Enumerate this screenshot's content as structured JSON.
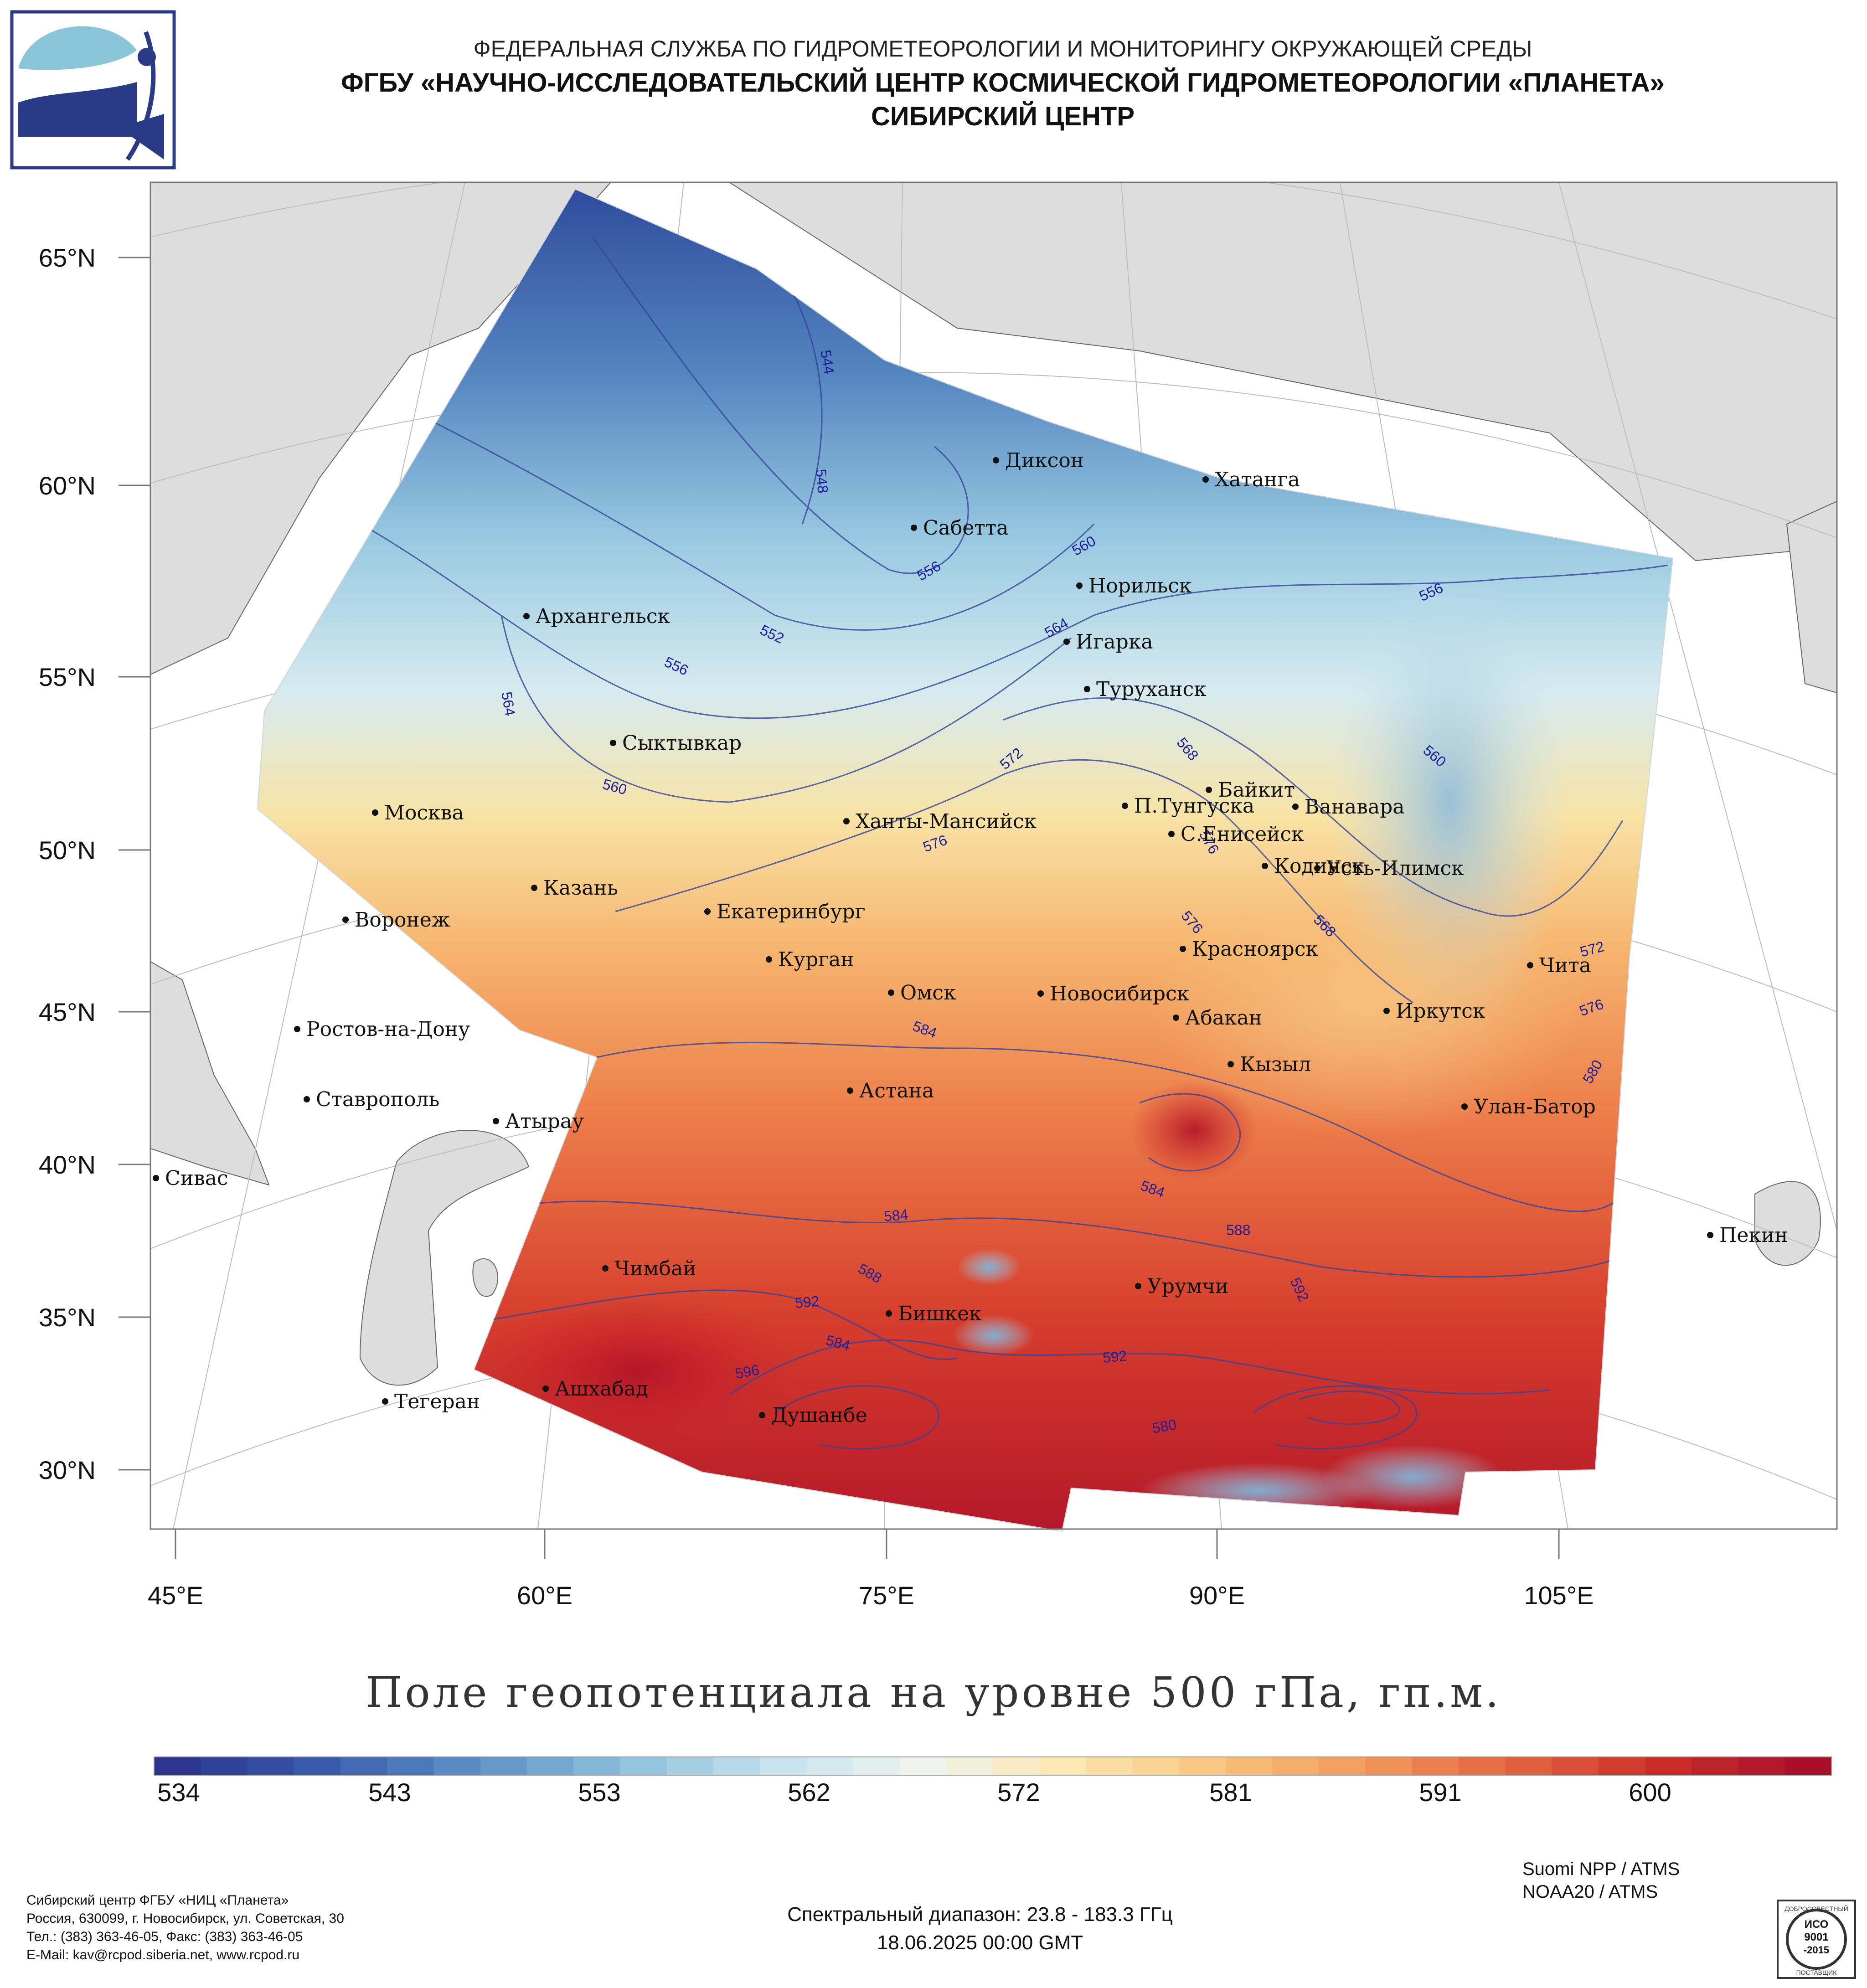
{
  "header": {
    "agency": "ФЕДЕРАЛЬНАЯ СЛУЖБА ПО ГИДРОМЕТЕОРОЛОГИИ И МОНИТОРИНГУ ОКРУЖАЮЩЕЙ СРЕДЫ",
    "organization": "ФГБУ «НАУЧНО-ИССЛЕДОВАТЕЛЬСКИЙ ЦЕНТР КОСМИЧЕСКОЙ ГИДРОМЕТЕОРОЛОГИИ «ПЛАНЕТА»",
    "center": "СИБИРСКИЙ ЦЕНТР"
  },
  "map": {
    "lat_labels": [
      "65°N",
      "60°N",
      "55°N",
      "50°N",
      "45°N",
      "40°N",
      "35°N",
      "30°N"
    ],
    "lon_labels": [
      "45°E",
      "60°E",
      "75°E",
      "90°E",
      "105°E"
    ],
    "cities": [
      "Диксон",
      "Хатанга",
      "Сабетта",
      "Норильск",
      "Архангельск",
      "Игарка",
      "Туруханск",
      "Сыктывкар",
      "Байкит",
      "П.Тунгуска",
      "Ванавара",
      "Москва",
      "Ханты-Мансийск",
      "С.Енисейск",
      "Кодинск",
      "Усть-Илимск",
      "Казань",
      "Екатеринбург",
      "Воронеж",
      "Красноярск",
      "Курган",
      "Чита",
      "Омск",
      "Новосибирск",
      "Иркутск",
      "Ростов-на-Дону",
      "Абакан",
      "Кызыл",
      "Астана",
      "Ставрополь",
      "Улан-Батор",
      "Атырау",
      "Сивас",
      "Пекин",
      "Чимбай",
      "Урумчи",
      "Бишкек",
      "Ашхабад",
      "Тегеран",
      "Душанбе"
    ],
    "contour_labels": [
      "544",
      "548",
      "552",
      "556",
      "556",
      "556",
      "560",
      "560",
      "560",
      "564",
      "564",
      "568",
      "568",
      "572",
      "572",
      "576",
      "576",
      "576",
      "576",
      "580",
      "580",
      "584",
      "584",
      "584",
      "584",
      "588",
      "588",
      "592",
      "592",
      "592",
      "596"
    ]
  },
  "title": "Поле геопотенциала на уровне 500 гПа, гп.м.",
  "colorbar": {
    "ticks": [
      "534",
      "543",
      "553",
      "562",
      "572",
      "581",
      "591",
      "600"
    ],
    "colors": [
      "#2b3590",
      "#3a5bae",
      "#5d8ec6",
      "#8dbfdc",
      "#c3e0ec",
      "#eef4ee",
      "#fbe7b0",
      "#f9c47d",
      "#f29a5c",
      "#e4643f",
      "#cc2e2a",
      "#a8102a"
    ]
  },
  "footer": {
    "address": [
      "Сибирский центр ФГБУ «НИЦ «Планета»",
      "Россия, 630099, г. Новосибирск, ул. Советская, 30",
      "Тел.: (383) 363-46-05, Факс: (383) 363-46-05",
      "E-Mail: kav@rcpod.siberia.net, www.rcpod.ru"
    ],
    "spectral": "Спектральный диапазон: 23.8 - 183.3 ГГц",
    "datetime": "18.06.2025 00:00 GMT",
    "satellites": [
      "Suomi NPP / ATMS",
      "NOAA20 / ATMS"
    ],
    "badge": [
      "ДОБРОСОВЕСТНЫЙ",
      "ИСО",
      "9001",
      "-2015",
      "ПОСТАВЩИК"
    ]
  }
}
